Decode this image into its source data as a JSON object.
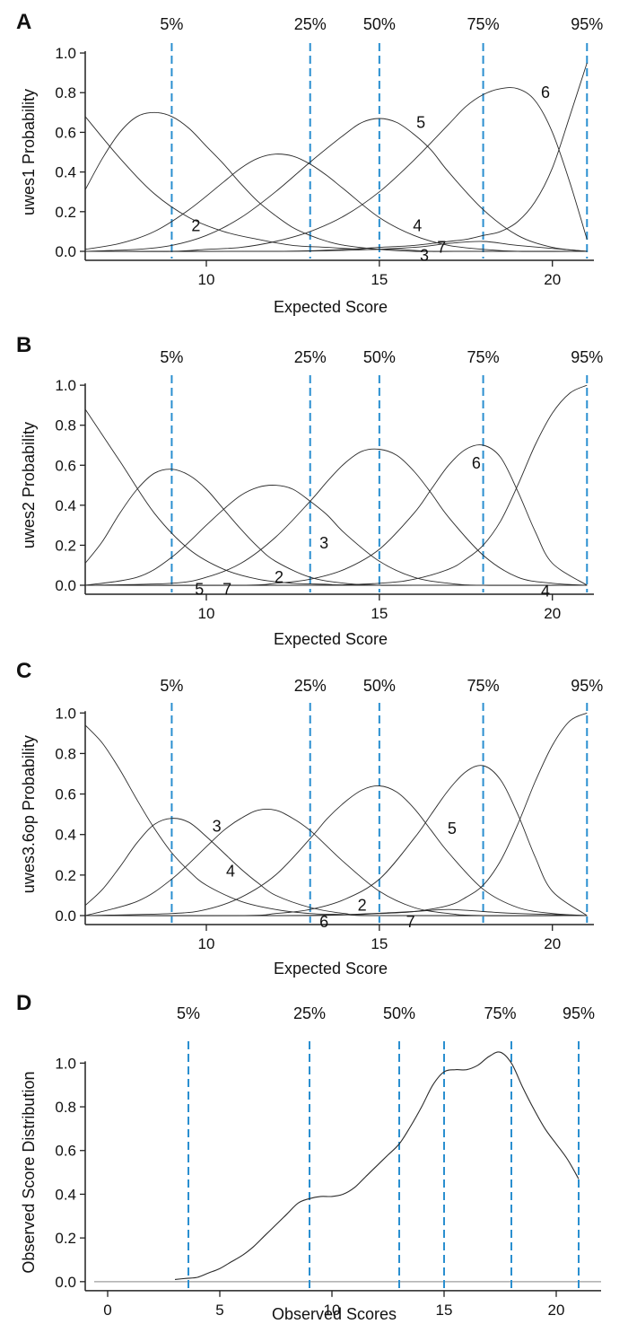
{
  "chart_data": [
    {
      "panel": "A",
      "type": "line",
      "xlabel": "Expected Score",
      "ylabel": "uwes1 Probability",
      "xlim": [
        6.5,
        21.2
      ],
      "ylim": [
        0,
        1.05
      ],
      "x_ticks": [
        10,
        15,
        20
      ],
      "y_ticks": [
        0.0,
        0.2,
        0.4,
        0.6,
        0.8,
        1.0
      ],
      "percentile_lines": [
        {
          "label": "5%",
          "x": 9
        },
        {
          "label": "25%",
          "x": 13
        },
        {
          "label": "50%",
          "x": 15
        },
        {
          "label": "75%",
          "x": 18
        },
        {
          "label": "95%",
          "x": 21
        }
      ],
      "series": [
        {
          "x": [
            6.5,
            7.5,
            8.5,
            9.5,
            10.5,
            11.5,
            12.5,
            13.5,
            14.5,
            15.5,
            16.5,
            17.5,
            18.5,
            19.5,
            20.5,
            21.0
          ],
          "values": [
            0.68,
            0.47,
            0.29,
            0.17,
            0.1,
            0.06,
            0.03,
            0.02,
            0.01,
            0.01,
            0.0,
            0.0,
            0.0,
            0.0,
            0.0,
            0.0
          ]
        },
        {
          "x": [
            6.5,
            7.0,
            7.5,
            8.0,
            8.5,
            9.0,
            9.5,
            10.0,
            10.5,
            11.0,
            11.5,
            12.0,
            12.5,
            13.0,
            13.5,
            14.0,
            15.0,
            16.0,
            17.0,
            18.0,
            21.0
          ],
          "values": [
            0.31,
            0.47,
            0.6,
            0.68,
            0.7,
            0.68,
            0.62,
            0.53,
            0.44,
            0.34,
            0.25,
            0.18,
            0.12,
            0.08,
            0.05,
            0.03,
            0.01,
            0.0,
            0.0,
            0.0,
            0.0
          ]
        },
        {
          "x": [
            6.5,
            7.5,
            8.5,
            9.5,
            10.5,
            11.0,
            11.5,
            12.0,
            12.5,
            13.0,
            13.5,
            14.0,
            15.0,
            16.0,
            17.0,
            18.0,
            19.0,
            21.0
          ],
          "values": [
            0.01,
            0.04,
            0.1,
            0.21,
            0.35,
            0.42,
            0.47,
            0.49,
            0.48,
            0.44,
            0.38,
            0.31,
            0.17,
            0.08,
            0.03,
            0.01,
            0.0,
            0.0
          ]
        },
        {
          "x": [
            6.5,
            8.0,
            9.0,
            10.0,
            11.0,
            12.0,
            13.0,
            14.0,
            14.5,
            15.0,
            15.5,
            16.0,
            16.5,
            17.0,
            18.0,
            19.0,
            20.0,
            21.0
          ],
          "values": [
            0.0,
            0.01,
            0.03,
            0.08,
            0.17,
            0.3,
            0.45,
            0.59,
            0.65,
            0.67,
            0.65,
            0.59,
            0.51,
            0.4,
            0.21,
            0.08,
            0.02,
            0.0
          ]
        },
        {
          "x": [
            6.5,
            9.0,
            10.0,
            11.0,
            12.0,
            13.0,
            14.0,
            15.0,
            16.0,
            17.0,
            17.5,
            18.0,
            18.5,
            19.0,
            19.5,
            20.0,
            20.5,
            21.0
          ],
          "values": [
            0.0,
            0.0,
            0.01,
            0.02,
            0.05,
            0.1,
            0.18,
            0.3,
            0.46,
            0.64,
            0.73,
            0.79,
            0.82,
            0.82,
            0.76,
            0.6,
            0.35,
            0.06
          ]
        },
        {
          "x": [
            6.5,
            12.0,
            14.0,
            15.0,
            16.0,
            17.0,
            17.5,
            18.0,
            18.5,
            19.0,
            19.5,
            20.0,
            20.5,
            21.0
          ],
          "values": [
            0.0,
            0.0,
            0.01,
            0.02,
            0.03,
            0.05,
            0.06,
            0.08,
            0.1,
            0.15,
            0.25,
            0.42,
            0.68,
            0.95
          ]
        },
        {
          "x": [
            6.5,
            12.0,
            14.0,
            16.0,
            17.0,
            18.0,
            19.0,
            21.0
          ],
          "values": [
            0.0,
            0.0,
            0.005,
            0.02,
            0.04,
            0.05,
            0.03,
            0.0
          ]
        }
      ],
      "curve_labels": [
        {
          "text": "2",
          "x": 9.7,
          "y": 0.13
        },
        {
          "text": "5",
          "x": 16.2,
          "y": 0.65
        },
        {
          "text": "6",
          "x": 19.8,
          "y": 0.8
        },
        {
          "text": "4",
          "x": 16.1,
          "y": 0.13
        },
        {
          "text": "7",
          "x": 16.8,
          "y": 0.02
        },
        {
          "text": "3",
          "x": 16.3,
          "y": -0.02
        }
      ]
    },
    {
      "panel": "B",
      "type": "line",
      "xlabel": "Expected Score",
      "ylabel": "uwes2 Probability",
      "xlim": [
        6.5,
        21.2
      ],
      "ylim": [
        0,
        1.05
      ],
      "x_ticks": [
        10,
        15,
        20
      ],
      "y_ticks": [
        0.0,
        0.2,
        0.4,
        0.6,
        0.8,
        1.0
      ],
      "percentile_lines": [
        {
          "label": "5%",
          "x": 9
        },
        {
          "label": "25%",
          "x": 13
        },
        {
          "label": "50%",
          "x": 15
        },
        {
          "label": "75%",
          "x": 18
        },
        {
          "label": "95%",
          "x": 21
        }
      ],
      "series": [
        {
          "x": [
            6.5,
            7.5,
            8.5,
            9.5,
            10.5,
            11.5,
            12.5,
            13.5,
            14.5,
            21.0
          ],
          "values": [
            0.88,
            0.62,
            0.36,
            0.18,
            0.08,
            0.03,
            0.01,
            0.005,
            0.0,
            0.0
          ]
        },
        {
          "x": [
            6.5,
            7.0,
            7.5,
            8.0,
            8.5,
            9.0,
            9.5,
            10.0,
            10.5,
            11.0,
            11.5,
            12.0,
            13.0,
            14.0,
            15.0,
            16.0,
            21.0
          ],
          "values": [
            0.11,
            0.22,
            0.36,
            0.48,
            0.56,
            0.58,
            0.55,
            0.48,
            0.38,
            0.28,
            0.19,
            0.12,
            0.04,
            0.01,
            0.0,
            0.0,
            0.0
          ]
        },
        {
          "x": [
            6.5,
            8.0,
            9.0,
            10.0,
            10.5,
            11.0,
            11.5,
            12.0,
            12.5,
            13.0,
            13.5,
            14.0,
            15.0,
            16.0,
            17.0,
            18.0,
            21.0
          ],
          "values": [
            0.0,
            0.04,
            0.14,
            0.3,
            0.38,
            0.45,
            0.49,
            0.5,
            0.48,
            0.42,
            0.35,
            0.26,
            0.12,
            0.04,
            0.01,
            0.0,
            0.0
          ]
        },
        {
          "x": [
            6.5,
            9.0,
            10.0,
            11.0,
            12.0,
            13.0,
            13.5,
            14.0,
            14.5,
            15.0,
            15.5,
            16.0,
            16.5,
            17.0,
            18.0,
            19.0,
            20.0,
            21.0
          ],
          "values": [
            0.0,
            0.01,
            0.04,
            0.11,
            0.24,
            0.42,
            0.52,
            0.61,
            0.67,
            0.68,
            0.65,
            0.57,
            0.46,
            0.34,
            0.15,
            0.04,
            0.01,
            0.0
          ]
        },
        {
          "x": [
            6.5,
            11.0,
            12.0,
            13.0,
            14.0,
            15.0,
            16.0,
            16.5,
            17.0,
            17.5,
            18.0,
            18.5,
            19.0,
            19.5,
            20.0,
            21.0
          ],
          "values": [
            0.0,
            0.0,
            0.01,
            0.03,
            0.08,
            0.18,
            0.36,
            0.48,
            0.6,
            0.68,
            0.7,
            0.64,
            0.47,
            0.27,
            0.11,
            0.0
          ]
        },
        {
          "x": [
            6.5,
            13.0,
            15.0,
            16.0,
            17.0,
            17.5,
            18.0,
            18.5,
            19.0,
            19.5,
            20.0,
            20.5,
            21.0
          ],
          "values": [
            0.0,
            0.0,
            0.01,
            0.03,
            0.08,
            0.13,
            0.2,
            0.32,
            0.5,
            0.7,
            0.86,
            0.96,
            1.0
          ]
        },
        {
          "x": [
            6.5,
            21.0
          ],
          "values": [
            0.0,
            0.0
          ]
        }
      ],
      "curve_labels": [
        {
          "text": "3",
          "x": 13.4,
          "y": 0.21
        },
        {
          "text": "6",
          "x": 17.8,
          "y": 0.61
        },
        {
          "text": "2",
          "x": 12.1,
          "y": 0.04
        },
        {
          "text": "5",
          "x": 9.8,
          "y": -0.02
        },
        {
          "text": "7",
          "x": 10.6,
          "y": -0.02
        },
        {
          "text": "4",
          "x": 19.8,
          "y": -0.03
        }
      ]
    },
    {
      "panel": "C",
      "type": "line",
      "xlabel": "Expected Score",
      "ylabel": "uwes3.6op Probability",
      "xlim": [
        6.5,
        21.2
      ],
      "ylim": [
        0,
        1.05
      ],
      "x_ticks": [
        10,
        15,
        20
      ],
      "y_ticks": [
        0.0,
        0.2,
        0.4,
        0.6,
        0.8,
        1.0
      ],
      "percentile_lines": [
        {
          "label": "5%",
          "x": 9
        },
        {
          "label": "25%",
          "x": 13
        },
        {
          "label": "50%",
          "x": 15
        },
        {
          "label": "75%",
          "x": 18
        },
        {
          "label": "95%",
          "x": 21
        }
      ],
      "series": [
        {
          "x": [
            6.5,
            7.0,
            7.5,
            8.0,
            8.5,
            9.0,
            9.5,
            10.0,
            11.0,
            12.0,
            13.0,
            14.0,
            15.0,
            21.0
          ],
          "values": [
            0.94,
            0.85,
            0.72,
            0.57,
            0.43,
            0.31,
            0.22,
            0.15,
            0.07,
            0.03,
            0.01,
            0.005,
            0.0,
            0.0
          ]
        },
        {
          "x": [
            6.5,
            7.0,
            7.5,
            8.0,
            8.5,
            9.0,
            9.5,
            10.0,
            10.5,
            11.0,
            11.5,
            12.0,
            13.0,
            14.0,
            15.0,
            21.0
          ],
          "values": [
            0.05,
            0.13,
            0.24,
            0.36,
            0.45,
            0.48,
            0.46,
            0.39,
            0.31,
            0.23,
            0.16,
            0.1,
            0.04,
            0.01,
            0.0,
            0.0
          ]
        },
        {
          "x": [
            6.5,
            8.0,
            9.0,
            10.0,
            10.5,
            11.0,
            11.5,
            12.0,
            12.5,
            13.0,
            13.5,
            14.0,
            15.0,
            16.0,
            17.0,
            18.0,
            21.0
          ],
          "values": [
            0.0,
            0.07,
            0.18,
            0.34,
            0.42,
            0.48,
            0.52,
            0.52,
            0.48,
            0.42,
            0.34,
            0.26,
            0.12,
            0.04,
            0.01,
            0.0,
            0.0
          ]
        },
        {
          "x": [
            6.5,
            9.0,
            10.0,
            11.0,
            12.0,
            13.0,
            13.5,
            14.0,
            14.5,
            15.0,
            15.5,
            16.0,
            16.5,
            17.0,
            18.0,
            19.0,
            20.0,
            21.0
          ],
          "values": [
            0.0,
            0.01,
            0.03,
            0.09,
            0.2,
            0.38,
            0.48,
            0.56,
            0.62,
            0.64,
            0.61,
            0.53,
            0.42,
            0.31,
            0.13,
            0.04,
            0.01,
            0.0
          ]
        },
        {
          "x": [
            6.5,
            11.0,
            12.0,
            13.0,
            14.0,
            15.0,
            16.0,
            16.5,
            17.0,
            17.5,
            18.0,
            18.5,
            19.0,
            19.5,
            20.0,
            21.0
          ],
          "values": [
            0.0,
            0.0,
            0.01,
            0.03,
            0.08,
            0.18,
            0.38,
            0.5,
            0.62,
            0.71,
            0.74,
            0.67,
            0.5,
            0.29,
            0.12,
            0.0
          ]
        },
        {
          "x": [
            6.5,
            13.0,
            15.0,
            16.0,
            17.0,
            17.5,
            18.0,
            18.5,
            19.0,
            19.5,
            20.0,
            20.5,
            21.0
          ],
          "values": [
            0.0,
            0.0,
            0.01,
            0.02,
            0.05,
            0.09,
            0.15,
            0.27,
            0.45,
            0.66,
            0.84,
            0.96,
            1.0
          ]
        },
        {
          "x": [
            6.5,
            12.0,
            14.0,
            16.0,
            17.0,
            18.0,
            19.0,
            21.0
          ],
          "values": [
            0.0,
            0.0,
            0.005,
            0.02,
            0.03,
            0.02,
            0.01,
            0.0
          ]
        }
      ],
      "curve_labels": [
        {
          "text": "3",
          "x": 10.3,
          "y": 0.44
        },
        {
          "text": "4",
          "x": 10.7,
          "y": 0.22
        },
        {
          "text": "5",
          "x": 17.1,
          "y": 0.43
        },
        {
          "text": "2",
          "x": 14.5,
          "y": 0.05
        },
        {
          "text": "6",
          "x": 13.4,
          "y": -0.03
        },
        {
          "text": "7",
          "x": 15.9,
          "y": -0.03
        }
      ]
    },
    {
      "panel": "D",
      "type": "line",
      "xlabel": "Observed Scores",
      "ylabel": "Observed Score Distribution",
      "xlim": [
        -1,
        22
      ],
      "ylim": [
        -0.05,
        1.1
      ],
      "x_ticks": [
        0,
        5,
        10,
        15,
        20
      ],
      "y_ticks": [
        0.0,
        0.2,
        0.4,
        0.6,
        0.8,
        1.0
      ],
      "baseline": 0,
      "percentile_lines": [
        {
          "label": "5%",
          "x": 3.6
        },
        {
          "label": "25%",
          "x": 9
        },
        {
          "label": "50%",
          "x": 13
        },
        {
          "label": "75%",
          "x": 15
        },
        {
          "label": "95%",
          "x": 18
        },
        {
          "label": "",
          "x": 21
        }
      ],
      "series": [
        {
          "x": [
            3.0,
            3.5,
            4.0,
            4.5,
            5.0,
            5.5,
            6.0,
            6.5,
            7.0,
            7.5,
            8.0,
            8.5,
            9.0,
            9.5,
            10.0,
            10.5,
            11.0,
            11.5,
            12.0,
            12.5,
            13.0,
            13.5,
            14.0,
            14.5,
            15.0,
            15.5,
            16.0,
            16.5,
            17.0,
            17.5,
            18.0,
            18.5,
            19.0,
            19.5,
            20.0,
            20.5,
            21.0
          ],
          "values": [
            0.01,
            0.015,
            0.02,
            0.04,
            0.06,
            0.09,
            0.12,
            0.16,
            0.21,
            0.26,
            0.31,
            0.36,
            0.38,
            0.39,
            0.39,
            0.4,
            0.43,
            0.48,
            0.53,
            0.58,
            0.63,
            0.71,
            0.8,
            0.9,
            0.96,
            0.97,
            0.97,
            0.99,
            1.03,
            1.05,
            1.0,
            0.89,
            0.79,
            0.7,
            0.63,
            0.56,
            0.47
          ]
        }
      ]
    }
  ]
}
